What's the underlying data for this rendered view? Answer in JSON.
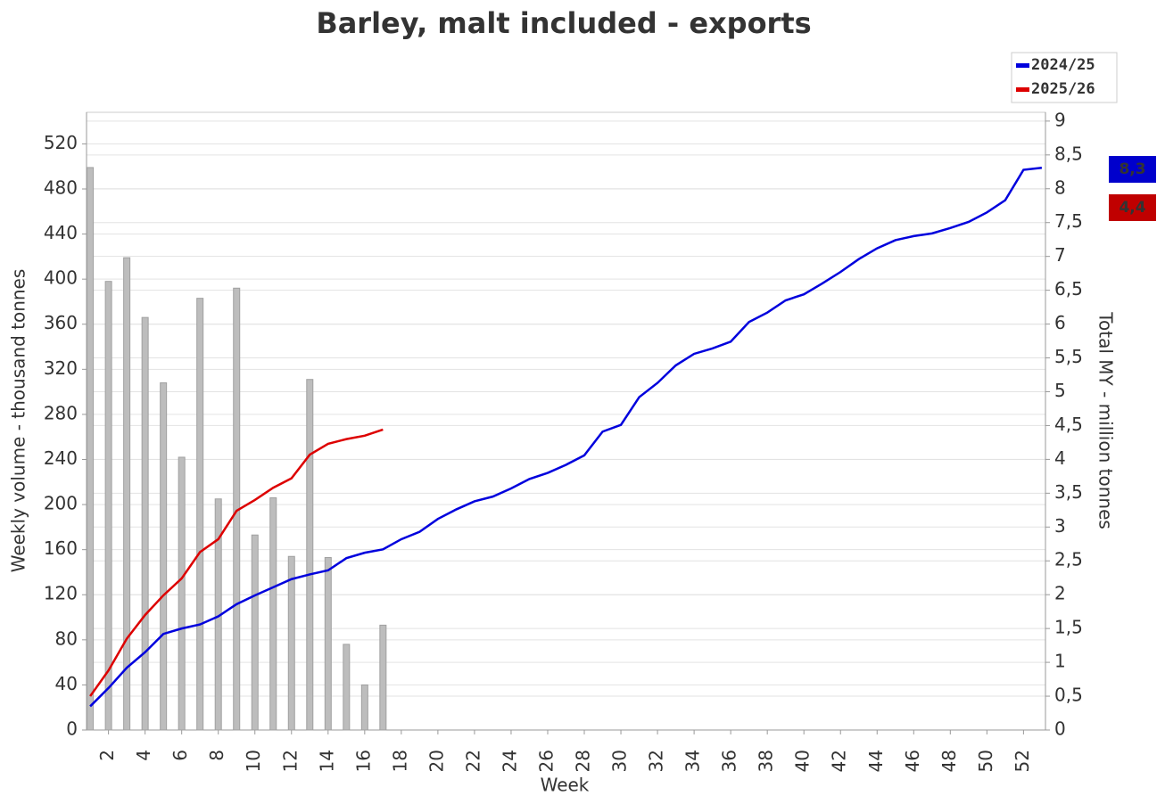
{
  "chart_data": {
    "type": "line",
    "title": "Barley, malt included - exports",
    "x_label": "Week",
    "y_label": "Weekly volume - thousand tonnes",
    "y2_label": "Total MY - million tonnes",
    "x": [
      1,
      2,
      3,
      4,
      5,
      6,
      7,
      8,
      9,
      10,
      11,
      12,
      13,
      14,
      15,
      16,
      17,
      18,
      19,
      20,
      21,
      22,
      23,
      24,
      25,
      26,
      27,
      28,
      29,
      30,
      31,
      32,
      33,
      34,
      35,
      36,
      37,
      38,
      39,
      40,
      41,
      42,
      43,
      44,
      45,
      46,
      47,
      48,
      49,
      50,
      51,
      52,
      53
    ],
    "xlim": [
      0.8,
      53.2
    ],
    "xticks": [
      2,
      4,
      6,
      8,
      10,
      12,
      14,
      16,
      18,
      20,
      22,
      24,
      26,
      28,
      30,
      32,
      34,
      36,
      38,
      40,
      42,
      44,
      46,
      48,
      50,
      52
    ],
    "ylim": [
      0,
      548
    ],
    "yticks": [
      0,
      40,
      80,
      120,
      160,
      200,
      240,
      280,
      320,
      360,
      400,
      440,
      480,
      520
    ],
    "y2lim": [
      0,
      9.13
    ],
    "y2ticks": [
      0,
      {
        "value": 0.5,
        "label": "0,5"
      },
      1,
      {
        "value": 1.5,
        "label": "1,5"
      },
      2,
      {
        "value": 2.5,
        "label": "2,5"
      },
      3,
      {
        "value": 3.5,
        "label": "3,5"
      },
      4,
      {
        "value": 4.5,
        "label": "4,5"
      },
      5,
      {
        "value": 5.5,
        "label": "5,5"
      },
      6,
      {
        "value": 6.5,
        "label": "6,5"
      },
      7,
      {
        "value": 7.5,
        "label": "7,5"
      },
      8,
      {
        "value": 8.5,
        "label": "8,5"
      },
      9
    ],
    "grid": true,
    "legend": "top-right",
    "bar_color": "#bdbdbd",
    "bar_values": [
      499,
      398,
      419,
      366,
      308,
      242,
      383,
      205,
      392,
      173,
      206,
      154,
      311,
      153,
      76,
      40,
      93,
      0,
      0,
      0,
      0,
      0,
      0,
      0,
      0,
      0,
      0,
      0,
      0,
      0,
      0,
      0,
      0,
      0,
      0,
      0,
      0,
      0,
      0,
      0,
      0,
      0,
      0,
      0,
      0,
      0,
      0,
      0,
      0,
      0,
      0,
      0,
      0
    ],
    "series": [
      {
        "name": "2024/25",
        "color": "#0000dd",
        "axis": "y2",
        "last_label": "8,3",
        "label_color": "#0000cc",
        "values": [
          0.35,
          0.62,
          0.92,
          1.15,
          1.42,
          1.5,
          1.56,
          1.68,
          1.86,
          1.99,
          2.11,
          2.23,
          2.3,
          2.36,
          2.54,
          2.62,
          2.67,
          2.82,
          2.93,
          3.12,
          3.26,
          3.38,
          3.45,
          3.57,
          3.71,
          3.8,
          3.92,
          4.06,
          4.41,
          4.51,
          4.92,
          5.13,
          5.39,
          5.56,
          5.64,
          5.74,
          6.03,
          6.17,
          6.35,
          6.44,
          6.6,
          6.77,
          6.96,
          7.12,
          7.24,
          7.3,
          7.34,
          7.42,
          7.51,
          7.65,
          7.83,
          8.28,
          8.31
        ]
      },
      {
        "name": "2025/26",
        "color": "#dd0000",
        "axis": "y2",
        "last_label": "4,4",
        "label_color": "#c00000",
        "values": [
          0.5,
          0.88,
          1.35,
          1.7,
          1.99,
          2.24,
          2.63,
          2.82,
          3.24,
          3.4,
          3.58,
          3.72,
          4.07,
          4.23,
          4.3,
          4.35,
          4.44,
          null,
          null,
          null,
          null,
          null,
          null,
          null,
          null,
          null,
          null,
          null,
          null,
          null,
          null,
          null,
          null,
          null,
          null,
          null,
          null,
          null,
          null,
          null,
          null,
          null,
          null,
          null,
          null,
          null,
          null,
          null,
          null,
          null,
          null,
          null,
          null
        ]
      }
    ]
  }
}
